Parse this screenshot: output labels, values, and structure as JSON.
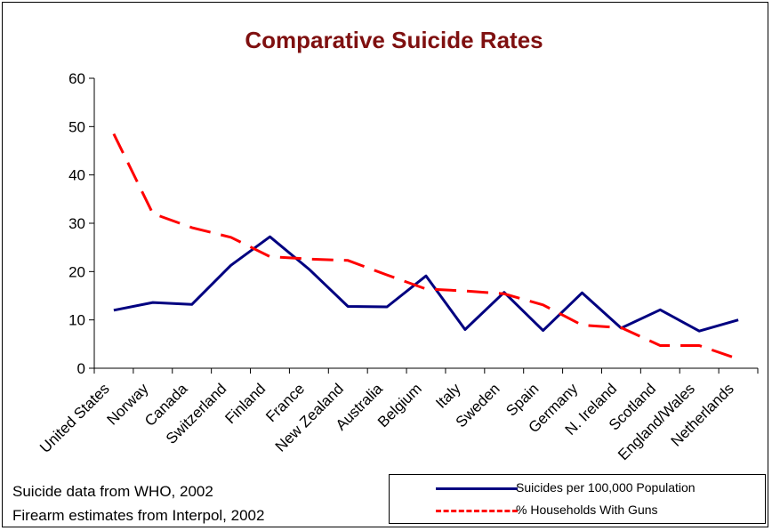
{
  "chart_data": {
    "type": "line",
    "title": "Comparative Suicide Rates",
    "categories": [
      "United States",
      "Norway",
      "Canada",
      "Switzerland",
      "Finland",
      "France",
      "New Zealand",
      "Australia",
      "Belgium",
      "Italy",
      "Sweden",
      "Spain",
      "Germany",
      "N. Ireland",
      "Scotland",
      "England/Wales",
      "Netherlands"
    ],
    "series": [
      {
        "name": "Suicides per 100,000 Population",
        "color": "#000080",
        "style": "solid",
        "values": [
          12,
          13.6,
          13.2,
          21.3,
          27.2,
          20.5,
          12.8,
          12.7,
          19.1,
          8,
          15.7,
          7.8,
          15.6,
          8.3,
          12.1,
          7.7,
          10
        ]
      },
      {
        "name": "% Households With Guns",
        "color": "#ff0000",
        "style": "dashed",
        "values": [
          48.5,
          32,
          29.1,
          27.1,
          23.1,
          22.6,
          22.3,
          19.3,
          16.4,
          16.0,
          15.4,
          13.1,
          8.9,
          8.4,
          4.7,
          4.7,
          1.9
        ]
      }
    ],
    "ylim": [
      0,
      60
    ],
    "yticks": [
      0,
      10,
      20,
      30,
      40,
      50,
      60
    ],
    "grid": false,
    "legend": "bottom-right",
    "notes": [
      "Suicide data from WHO, 2002",
      "Firearm estimates from Interpol, 2002"
    ]
  }
}
